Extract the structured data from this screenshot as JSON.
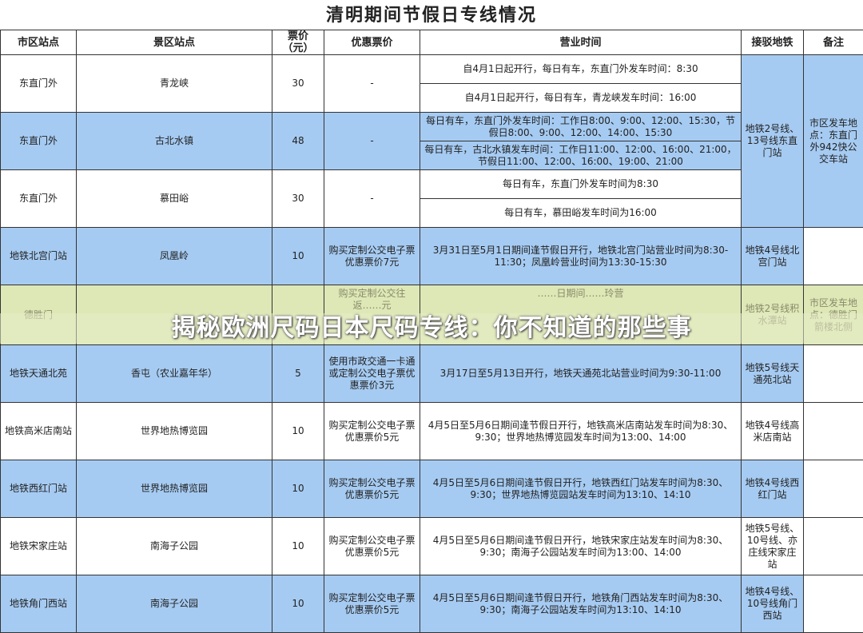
{
  "title": "清明期间节假日专线情况",
  "headers": [
    "市区站点",
    "景区站点",
    "票价（元）",
    "优惠票价",
    "营业时间",
    "接驳地铁",
    "备注"
  ],
  "rows": [
    {
      "city": "东直门外",
      "scenic": "青龙峡",
      "price": "30",
      "discount": "-",
      "hours": [
        "自4月1日起开行，每日有车，东直门外发车时间：8:30",
        "自4月1日起开行，每日有车，青龙峡发车时间：16:00"
      ]
    },
    {
      "city": "东直门外",
      "scenic": "古北水镇",
      "price": "48",
      "discount": "-",
      "hours": [
        "每日有车，东直门外发车时间：工作日8:00、9:00、12:00、15:30，节假日8:00、9:00、12:00、14:00、15:30",
        "每日有车，古北水镇发车时间：工作日11:00、12:00、16:00、21:00，节假日11:00、12:00、16:00、19:00、21:00"
      ]
    },
    {
      "city": "东直门外",
      "scenic": "慕田峪",
      "price": "30",
      "discount": "-",
      "hours": [
        "每日有车，东直门外发车时间为8:30",
        "每日有车，慕田峪发车时间为16:00"
      ]
    },
    {
      "city": "地铁北宫门站",
      "scenic": "凤凰岭",
      "price": "10",
      "discount": "购买定制公交电子票优惠票价7元",
      "hours": "3月31日至5月1日期间逢节假日开行，地铁北宫门站营业时间为8:30-11:30；凤凰岭营业时间为13:30-15:30",
      "metro": "地铁4号线北宫门站"
    },
    {
      "city": "德胜门",
      "scenic": "",
      "price": "",
      "discount": "购买定制公交往返……元",
      "hours": "……日期间……玲营",
      "metro": "地铁2号线积水潭站",
      "note": "市区发车地点：德胜门箭楼北侧"
    },
    {
      "city": "地铁天通北苑",
      "scenic": "香屯（农业嘉年华）",
      "price": "5",
      "discount": "使用市政交通一卡通或定制公交电子票优惠票价3元",
      "hours": "3月17日至5月13日开行，地铁天通苑北站营业时间为9:30-11:00",
      "metro": "地铁5号线天通苑北站"
    },
    {
      "city": "地铁高米店南站",
      "scenic": "世界地热博览园",
      "price": "10",
      "discount": "购买定制公交电子票优惠票价5元",
      "hours": "4月5日至5月6日期间逢节假日开行，地铁高米店南站发车时间为8:30、9:30；世界地热博览园发车时间为13:00、14:00",
      "metro": "地铁4号线高米店南站"
    },
    {
      "city": "地铁西红门站",
      "scenic": "世界地热博览园",
      "price": "10",
      "discount": "购买定制公交电子票优惠票价5元",
      "hours": "4月5日至5月6日期间逢节假日开行，地铁西红门站发车时间为8:30、9:30；世界地热博览园站发车时间为13:10、14:10",
      "metro": "地铁4号线西红门站"
    },
    {
      "city": "地铁宋家庄站",
      "scenic": "南海子公园",
      "price": "10",
      "discount": "购买定制公交电子票优惠票价5元",
      "hours": "4月5日至5月6日期间逢节假日开行，地铁宋家庄站发车时间为8:30、9:30；南海子公园站发车时间为13:00、14:00",
      "metro": "地铁5号线、10号线、亦庄线宋家庄站"
    },
    {
      "city": "地铁角门西站",
      "scenic": "南海子公园",
      "price": "10",
      "discount": "购买定制公交电子票优惠票价5元",
      "hours": "4月5日至5月6日期间逢节假日开行，地铁角门西站发车时间为8:30、9:30；南海子公园站发车时间为13:10、14:10",
      "metro": "地铁4号线、10号线角门西站"
    }
  ],
  "group_metro": "地铁2号线、13号线东直门站",
  "group_note": "市区发车地点：东直门外942快公交车站",
  "banner": "揭秘欧洲尺码日本尺码专线：你不知道的那些事",
  "colors": {
    "row_blue": "#a6cbf2",
    "header_bg": "#ffffff"
  }
}
